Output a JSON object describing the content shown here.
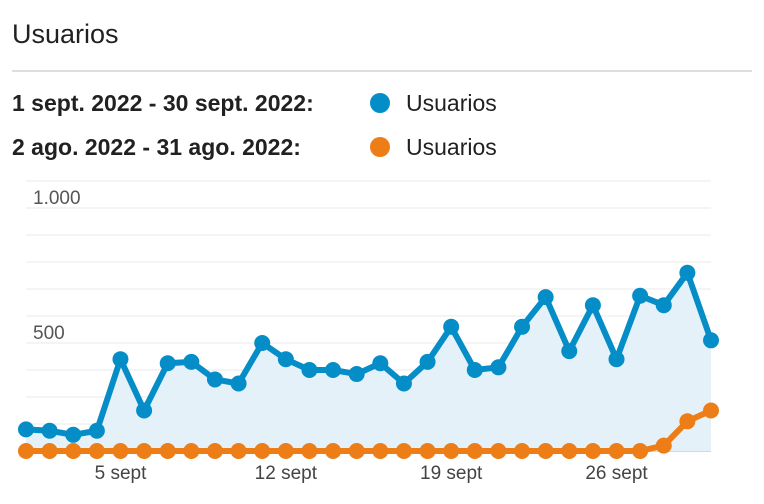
{
  "card": {
    "title": "Usuarios"
  },
  "legend": [
    {
      "range": "1 sept. 2022 - 30 sept. 2022:",
      "series": "Usuarios",
      "color": "#058dc7"
    },
    {
      "range": "2 ago. 2022 - 31 ago. 2022:",
      "series": "Usuarios",
      "color": "#ed7e17"
    }
  ],
  "chart_data": {
    "type": "line",
    "x": [
      1,
      2,
      3,
      4,
      5,
      6,
      7,
      8,
      9,
      10,
      11,
      12,
      13,
      14,
      15,
      16,
      17,
      18,
      19,
      20,
      21,
      22,
      23,
      24,
      25,
      26,
      27,
      28,
      29,
      30
    ],
    "x_tick_labels": [
      {
        "x": 5,
        "label": "5 sept"
      },
      {
        "x": 12,
        "label": "12 sept"
      },
      {
        "x": 19,
        "label": "19 sept"
      },
      {
        "x": 26,
        "label": "26 sept"
      }
    ],
    "y_tick_labels": [
      {
        "value": 500,
        "label": "500"
      },
      {
        "value": 1000,
        "label": "1.000"
      }
    ],
    "ylim": [
      0,
      1000
    ],
    "grid": true,
    "series": [
      {
        "name": "Usuarios",
        "color": "#058dc7",
        "area": true,
        "values": [
          80,
          75,
          60,
          75,
          340,
          150,
          325,
          330,
          265,
          250,
          400,
          340,
          300,
          300,
          285,
          325,
          250,
          330,
          460,
          300,
          310,
          460,
          570,
          370,
          540,
          340,
          575,
          540,
          660,
          410
        ]
      },
      {
        "name": "Usuarios",
        "color": "#ed7e17",
        "area": false,
        "values": [
          0,
          0,
          0,
          0,
          0,
          0,
          0,
          0,
          0,
          0,
          0,
          0,
          0,
          0,
          0,
          0,
          0,
          0,
          0,
          0,
          0,
          0,
          0,
          0,
          0,
          0,
          0,
          20,
          110,
          150
        ]
      }
    ]
  }
}
